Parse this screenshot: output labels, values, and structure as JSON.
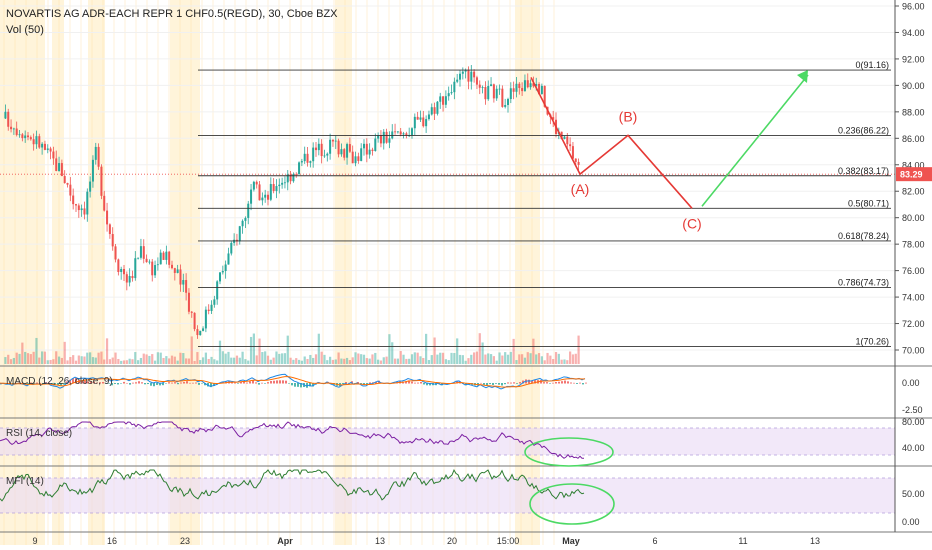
{
  "header": {
    "symbol_line": "NOVARTIS AG ADR-EACH REPR 1 CHF0.5(REGD), 30, Cboe BZX",
    "volume_label": "Vol (50)"
  },
  "colors": {
    "up": "#26a69a",
    "down": "#ef5350",
    "wave": "#e53935",
    "projection": "#4cd964",
    "rsi": "#7b1fa2",
    "mfi": "#2e7d32",
    "band": "#e9d8f5",
    "macd": "#1e88e5",
    "signal": "#ff6d00",
    "price_tag": "#ef5350",
    "session_shade": "#fff3d6"
  },
  "chart_data": {
    "type": "candlestick",
    "price_axis": {
      "min": 69,
      "max": 97,
      "ticks": [
        "96.00",
        "94.00",
        "92.00",
        "90.00",
        "88.00",
        "86.00",
        "84.00",
        "82.00",
        "80.00",
        "78.00",
        "76.00",
        "74.00",
        "72.00",
        "70.00"
      ]
    },
    "last_price": "83.29",
    "x_ticks": [
      "9",
      "16",
      "23",
      "Apr",
      "13",
      "20",
      "15:00",
      "May",
      "6",
      "11",
      "13"
    ],
    "price_path": [
      [
        0,
        87.5
      ],
      [
        3,
        85.6
      ],
      [
        5,
        83.5
      ],
      [
        6,
        81.3
      ],
      [
        7,
        80.8
      ],
      [
        8,
        84.8
      ],
      [
        9,
        79.8
      ],
      [
        10,
        76.5
      ],
      [
        11,
        75.2
      ],
      [
        12,
        77.8
      ],
      [
        13,
        76.2
      ],
      [
        14,
        77.2
      ],
      [
        15,
        75.9
      ],
      [
        16,
        74.3
      ],
      [
        17,
        71.2
      ],
      [
        18,
        73.2
      ],
      [
        19,
        75.6
      ],
      [
        20,
        77.6
      ],
      [
        21,
        79.8
      ],
      [
        22,
        82.1
      ],
      [
        23,
        81.3
      ],
      [
        24,
        82.7
      ],
      [
        25,
        83.1
      ],
      [
        27,
        84.9
      ],
      [
        29,
        85.6
      ],
      [
        31,
        84.6
      ],
      [
        33,
        85.9
      ],
      [
        35,
        86.3
      ],
      [
        37,
        87.5
      ],
      [
        39,
        89.4
      ],
      [
        40,
        90.1
      ],
      [
        41,
        90.8
      ],
      [
        42,
        89.3
      ],
      [
        43,
        89.6
      ],
      [
        44,
        89.0
      ],
      [
        45,
        89.6
      ],
      [
        46,
        90.1
      ],
      [
        47,
        90.6
      ],
      [
        48,
        88.1
      ],
      [
        49,
        86.3
      ],
      [
        50,
        85.1
      ],
      [
        51,
        83.5
      ]
    ],
    "fib_levels": [
      {
        "label": "0(91.16)",
        "value": 91.16
      },
      {
        "label": "0.236(86.22)",
        "value": 86.22
      },
      {
        "label": "0.382(83.17)",
        "value": 83.17
      },
      {
        "label": "0.5(80.71)",
        "value": 80.71
      },
      {
        "label": "0.618(78.24)",
        "value": 78.24
      },
      {
        "label": "0.786(74.73)",
        "value": 74.73
      },
      {
        "label": "1(70.26)",
        "value": 70.26
      }
    ],
    "wave_labels": [
      {
        "label": "(A)",
        "value": 83.29
      },
      {
        "label": "(B)",
        "value": 86.22
      },
      {
        "label": "(C)",
        "value": 80.71
      }
    ],
    "macd": {
      "label": "MACD (12, 26, close, 9)",
      "ticks": [
        "0.00",
        "-2.50"
      ]
    },
    "rsi": {
      "label": "RSI (14, close)",
      "ticks": [
        "80.00",
        "40.00"
      ]
    },
    "mfi": {
      "label": "MFI (14)",
      "ticks": [
        "50.00",
        "0.00"
      ]
    }
  }
}
